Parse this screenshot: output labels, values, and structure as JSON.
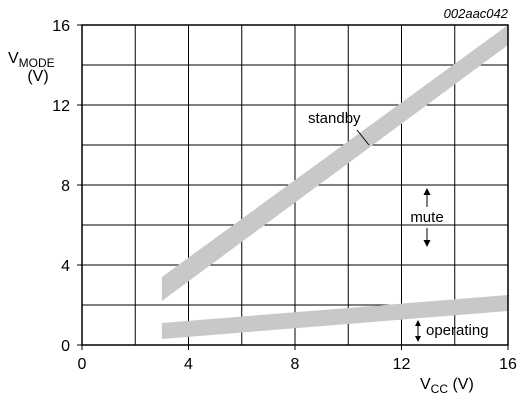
{
  "figure_code": "002aac042",
  "chart_data": {
    "type": "area",
    "title": "",
    "xlabel": "V",
    "xlabel_sub": "CC",
    "xlabel_unit": " (V)",
    "ylabel": "V",
    "ylabel_sub": "MODE",
    "ylabel_unit": "(V)",
    "xlim": [
      0,
      16
    ],
    "ylim": [
      0,
      16
    ],
    "x_ticks": [
      0,
      4,
      8,
      12,
      16
    ],
    "y_ticks": [
      0,
      4,
      8,
      12,
      16
    ],
    "x_tick_labels": [
      "0",
      "4",
      "8",
      "12",
      "16"
    ],
    "y_tick_labels": [
      "0",
      "4",
      "8",
      "12",
      "16"
    ],
    "grid": true,
    "grid_step_x": 2,
    "grid_step_y": 2,
    "band_color": "#c8c8c8",
    "series": [
      {
        "id": "standby-band",
        "points_upper": [
          [
            3,
            3.4
          ],
          [
            16,
            16.0
          ]
        ],
        "points_lower": [
          [
            3,
            2.2
          ],
          [
            16,
            15.0
          ]
        ]
      },
      {
        "id": "operating-band",
        "points_upper": [
          [
            3,
            1.1
          ],
          [
            16,
            2.5
          ]
        ],
        "points_lower": [
          [
            3,
            0.3
          ],
          [
            16,
            1.7
          ]
        ]
      }
    ],
    "annotations": {
      "standby": "standby",
      "mute": "mute",
      "operating": "operating"
    }
  }
}
